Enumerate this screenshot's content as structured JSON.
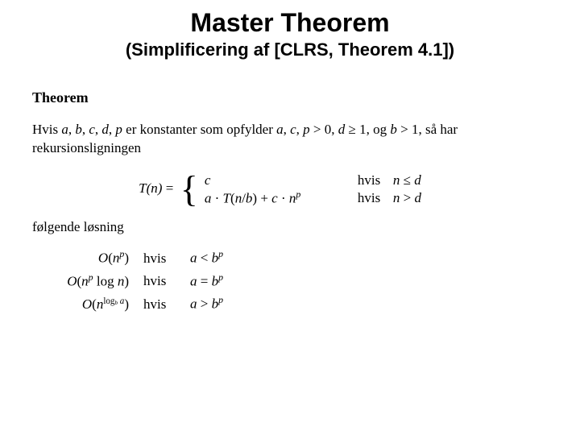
{
  "title": "Master Theorem",
  "subtitle": "(Simplificering af [CLRS, Theorem 4.1])",
  "theorem_label": "Theorem",
  "intro_text": "Hvis a, b, c, d, p er konstanter som opfylder a, c, p > 0, d ≥ 1, og b > 1, så har rekursionsligningen",
  "tn_lhs": "T(n) = ",
  "case1_expr": "c",
  "case1_hvis": "hvis",
  "case1_cond": "n ≤ d",
  "case2_expr_a": "a · T(n/b) + c · n",
  "case2_expr_sup": "p",
  "case2_hvis": "hvis",
  "case2_cond": "n > d",
  "follow_text": "følgende løsning",
  "sol1_expr_a": "O(n",
  "sol1_expr_sup": "p",
  "sol1_expr_b": ")",
  "sol1_hvis": "hvis",
  "sol1_cond_a": "a < b",
  "sol1_cond_sup": "p",
  "sol2_expr_a": "O(n",
  "sol2_expr_sup": "p",
  "sol2_expr_b": " log n)",
  "sol2_hvis": "hvis",
  "sol2_cond_a": "a = b",
  "sol2_cond_sup": "p",
  "sol3_expr_a": "O(n",
  "sol3_expr_sup1": "log",
  "sol3_expr_sub": "b",
  "sol3_expr_sup2": " a",
  "sol3_expr_b": ")",
  "sol3_hvis": "hvis",
  "sol3_cond_a": "a > b",
  "sol3_cond_sup": "p",
  "colors": {
    "background": "#ffffff",
    "text": "#000000"
  },
  "fonts": {
    "title_family": "Arial",
    "title_size_pt": 32,
    "subtitle_size_pt": 22,
    "body_family": "Georgia",
    "body_size_pt": 17
  }
}
